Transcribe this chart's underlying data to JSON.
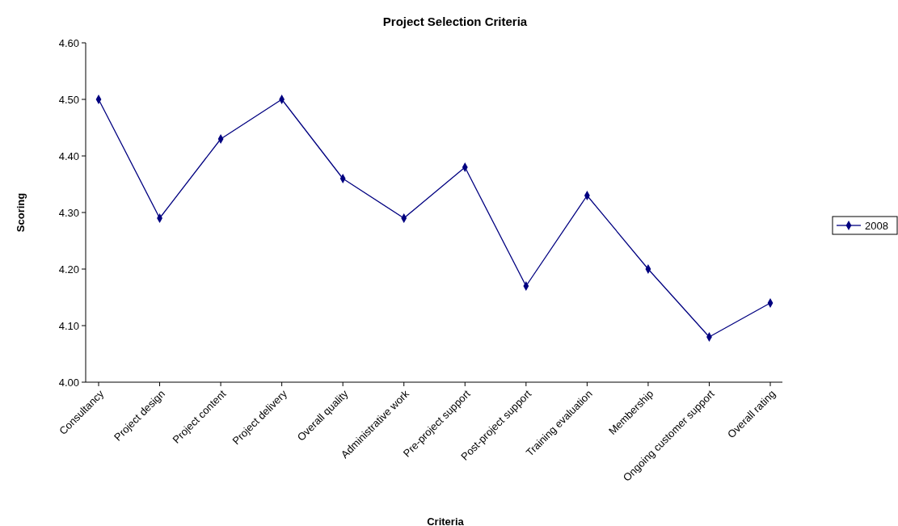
{
  "chart_data": {
    "type": "line",
    "title": "Project Selection Criteria",
    "xlabel": "Criteria",
    "ylabel": "Scoring",
    "categories": [
      "Consultancy",
      "Project design",
      "Project content",
      "Project delivery",
      "Overall quality",
      "Administrative work",
      "Pre-project support",
      "Post-project support",
      "Training evaluation",
      "Membership",
      "Ongoing customer support",
      "Overall rating"
    ],
    "series": [
      {
        "name": "2008",
        "color": "#000080",
        "values": [
          4.5,
          4.29,
          4.43,
          4.5,
          4.36,
          4.29,
          4.38,
          4.17,
          4.33,
          4.2,
          4.08,
          4.14
        ]
      }
    ],
    "ylim": [
      4.0,
      4.6
    ],
    "yticks": [
      {
        "value": 4.0,
        "label": "4.00"
      },
      {
        "value": 4.1,
        "label": "4.10"
      },
      {
        "value": 4.2,
        "label": "4.20"
      },
      {
        "value": 4.3,
        "label": "4.30"
      },
      {
        "value": 4.4,
        "label": "4.40"
      },
      {
        "value": 4.5,
        "label": "4.50"
      },
      {
        "value": 4.6,
        "label": "4.60"
      }
    ],
    "grid": false,
    "legend": "right",
    "marker": "diamond",
    "line_style": "solid"
  }
}
